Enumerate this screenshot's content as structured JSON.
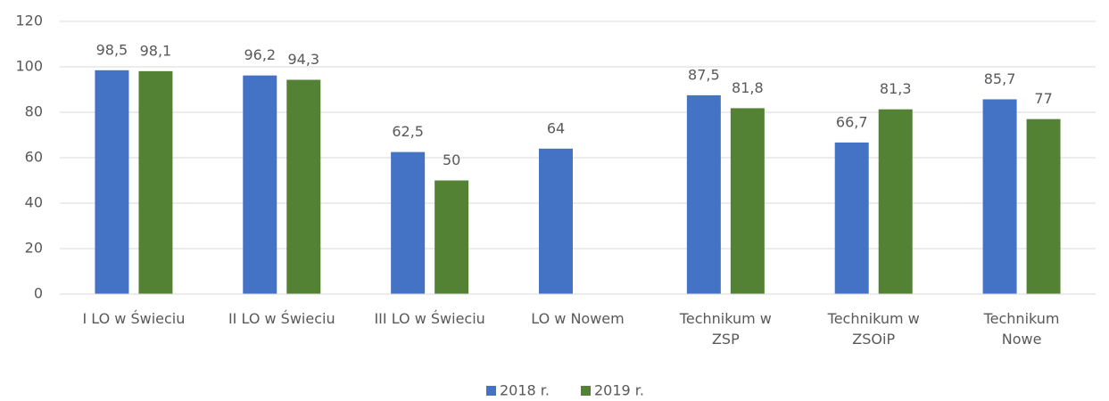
{
  "chart_data": {
    "type": "bar",
    "categories": [
      "I LO w Świeciu",
      "II LO w Świeciu",
      "III LO w Świeciu",
      "LO w Nowem",
      "Technikum w\nZSP",
      "Technikum w\nZSOiP",
      "Technikum\nNowe"
    ],
    "series": [
      {
        "name": "2018 r.",
        "color": "#4472c4",
        "values": [
          98.5,
          96.2,
          62.5,
          64,
          87.5,
          66.7,
          85.7
        ],
        "value_labels": [
          "98,5",
          "96,2",
          "62,5",
          "64",
          "87,5",
          "66,7",
          "85,7"
        ]
      },
      {
        "name": "2019 r.",
        "color": "#548235",
        "values": [
          98.1,
          94.3,
          50,
          null,
          81.8,
          81.3,
          77
        ],
        "value_labels": [
          "98,1",
          "94,3",
          "50",
          null,
          "81,8",
          "81,3",
          "77"
        ]
      }
    ],
    "ylim": [
      0,
      120
    ],
    "yticks": [
      0,
      20,
      40,
      60,
      80,
      100,
      120
    ],
    "grid": true,
    "legend": "bottom"
  }
}
